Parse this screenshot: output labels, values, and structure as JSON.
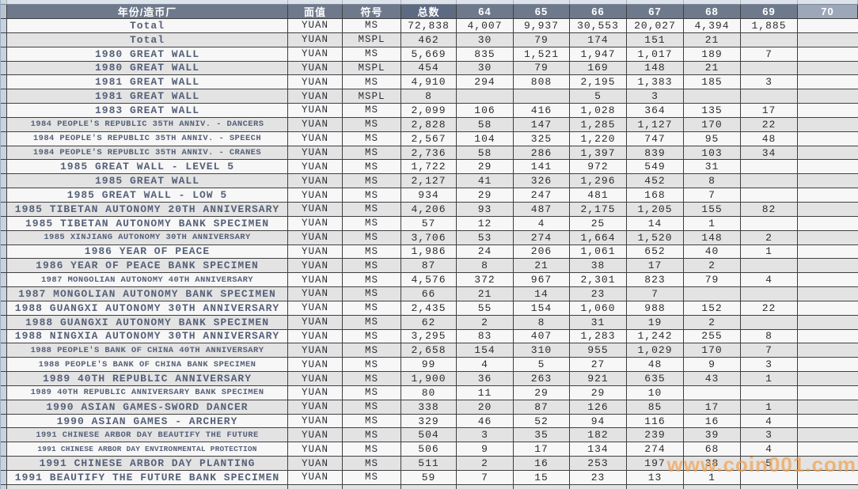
{
  "watermark": {
    "text": "www.coin001.com",
    "color": "#f2a24f"
  },
  "table": {
    "columns": [
      "年份/造币厂",
      "面值",
      "符号",
      "总数",
      "64",
      "65",
      "66",
      "67",
      "68",
      "69",
      "70"
    ],
    "rows": [
      {
        "name": "Total",
        "denomination": "YUAN",
        "designation": "MS",
        "total": "72,838",
        "grades": [
          "4,007",
          "9,937",
          "30,553",
          "20,027",
          "4,394",
          "1,885",
          ""
        ]
      },
      {
        "name": "Total",
        "denomination": "YUAN",
        "designation": "MSPL",
        "total": "462",
        "grades": [
          "30",
          "79",
          "174",
          "151",
          "21",
          "",
          ""
        ]
      },
      {
        "name": "1980 GREAT WALL",
        "denomination": "YUAN",
        "designation": "MS",
        "total": "5,669",
        "grades": [
          "835",
          "1,521",
          "1,947",
          "1,017",
          "189",
          "7",
          ""
        ]
      },
      {
        "name": "1980 GREAT WALL",
        "denomination": "YUAN",
        "designation": "MSPL",
        "total": "454",
        "grades": [
          "30",
          "79",
          "169",
          "148",
          "21",
          "",
          ""
        ]
      },
      {
        "name": "1981 GREAT WALL",
        "denomination": "YUAN",
        "designation": "MS",
        "total": "4,910",
        "grades": [
          "294",
          "808",
          "2,195",
          "1,383",
          "185",
          "3",
          ""
        ]
      },
      {
        "name": "1981 GREAT WALL",
        "denomination": "YUAN",
        "designation": "MSPL",
        "total": "8",
        "grades": [
          "",
          "",
          "5",
          "3",
          "",
          "",
          ""
        ]
      },
      {
        "name": "1983 GREAT WALL",
        "denomination": "YUAN",
        "designation": "MS",
        "total": "2,099",
        "grades": [
          "106",
          "416",
          "1,028",
          "364",
          "135",
          "17",
          ""
        ]
      },
      {
        "name": "1984 PEOPLE'S REPUBLIC 35TH ANNIV. - DANCERS",
        "denomination": "YUAN",
        "designation": "MS",
        "total": "2,828",
        "grades": [
          "58",
          "147",
          "1,285",
          "1,127",
          "170",
          "22",
          ""
        ]
      },
      {
        "name": "1984 PEOPLE'S REPUBLIC 35TH ANNIV. - SPEECH",
        "denomination": "YUAN",
        "designation": "MS",
        "total": "2,567",
        "grades": [
          "104",
          "325",
          "1,220",
          "747",
          "95",
          "48",
          ""
        ]
      },
      {
        "name": "1984 PEOPLE'S REPUBLIC 35TH ANNIV. - CRANES",
        "denomination": "YUAN",
        "designation": "MS",
        "total": "2,736",
        "grades": [
          "58",
          "286",
          "1,397",
          "839",
          "103",
          "34",
          ""
        ]
      },
      {
        "name": "1985 GREAT WALL - LEVEL 5",
        "denomination": "YUAN",
        "designation": "MS",
        "total": "1,722",
        "grades": [
          "29",
          "141",
          "972",
          "549",
          "31",
          "",
          ""
        ]
      },
      {
        "name": "1985 GREAT WALL",
        "denomination": "YUAN",
        "designation": "MS",
        "total": "2,127",
        "grades": [
          "41",
          "326",
          "1,296",
          "452",
          "8",
          "",
          ""
        ]
      },
      {
        "name": "1985 GREAT WALL - LOW 5",
        "denomination": "YUAN",
        "designation": "MS",
        "total": "934",
        "grades": [
          "29",
          "247",
          "481",
          "168",
          "7",
          "",
          ""
        ]
      },
      {
        "name": "1985 TIBETAN AUTONOMY 20TH ANNIVERSARY",
        "denomination": "YUAN",
        "designation": "MS",
        "total": "4,206",
        "grades": [
          "93",
          "487",
          "2,175",
          "1,205",
          "155",
          "82",
          ""
        ]
      },
      {
        "name": "1985 TIBETAN AUTONOMY BANK SPECIMEN",
        "denomination": "YUAN",
        "designation": "MS",
        "total": "57",
        "grades": [
          "12",
          "4",
          "25",
          "14",
          "1",
          "",
          ""
        ]
      },
      {
        "name": "1985 XINJIANG AUTONOMY 30TH ANNIVERSARY",
        "denomination": "YUAN",
        "designation": "MS",
        "total": "3,706",
        "grades": [
          "53",
          "274",
          "1,664",
          "1,520",
          "148",
          "2",
          ""
        ]
      },
      {
        "name": "1986 YEAR OF PEACE",
        "denomination": "YUAN",
        "designation": "MS",
        "total": "1,986",
        "grades": [
          "24",
          "206",
          "1,061",
          "652",
          "40",
          "1",
          ""
        ]
      },
      {
        "name": "1986 YEAR OF PEACE BANK SPECIMEN",
        "denomination": "YUAN",
        "designation": "MS",
        "total": "87",
        "grades": [
          "8",
          "21",
          "38",
          "17",
          "2",
          "",
          ""
        ]
      },
      {
        "name": "1987 MONGOLIAN AUTONOMY 40TH ANNIVERSARY",
        "denomination": "YUAN",
        "designation": "MS",
        "total": "4,576",
        "grades": [
          "372",
          "967",
          "2,301",
          "823",
          "79",
          "4",
          ""
        ]
      },
      {
        "name": "1987 MONGOLIAN AUTONOMY BANK SPECIMEN",
        "denomination": "YUAN",
        "designation": "MS",
        "total": "66",
        "grades": [
          "21",
          "14",
          "23",
          "7",
          "",
          "",
          ""
        ]
      },
      {
        "name": "1988 GUANGXI AUTONOMY 30TH ANNIVERSARY",
        "denomination": "YUAN",
        "designation": "MS",
        "total": "2,435",
        "grades": [
          "55",
          "154",
          "1,060",
          "988",
          "152",
          "22",
          ""
        ]
      },
      {
        "name": "1988 GUANGXI AUTONOMY BANK SPECIMEN",
        "denomination": "YUAN",
        "designation": "MS",
        "total": "62",
        "grades": [
          "2",
          "8",
          "31",
          "19",
          "2",
          "",
          ""
        ]
      },
      {
        "name": "1988 NINGXIA AUTONOMY 30TH ANNIVERSARY",
        "denomination": "YUAN",
        "designation": "MS",
        "total": "3,295",
        "grades": [
          "83",
          "407",
          "1,283",
          "1,242",
          "255",
          "8",
          ""
        ]
      },
      {
        "name": "1988 PEOPLE'S BANK OF CHINA 40TH ANNIVERSARY",
        "denomination": "YUAN",
        "designation": "MS",
        "total": "2,658",
        "grades": [
          "154",
          "310",
          "955",
          "1,029",
          "170",
          "7",
          ""
        ]
      },
      {
        "name": "1988 PEOPLE'S BANK OF CHINA BANK SPECIMEN",
        "denomination": "YUAN",
        "designation": "MS",
        "total": "99",
        "grades": [
          "4",
          "5",
          "27",
          "48",
          "9",
          "3",
          ""
        ]
      },
      {
        "name": "1989 40TH REPUBLIC ANNIVERSARY",
        "denomination": "YUAN",
        "designation": "MS",
        "total": "1,900",
        "grades": [
          "36",
          "263",
          "921",
          "635",
          "43",
          "1",
          ""
        ]
      },
      {
        "name": "1989 40TH REPUBLIC ANNIVERSARY BANK SPECIMEN",
        "denomination": "YUAN",
        "designation": "MS",
        "total": "80",
        "grades": [
          "11",
          "29",
          "29",
          "10",
          "",
          "",
          ""
        ]
      },
      {
        "name": "1990 ASIAN GAMES-SWORD DANCER",
        "denomination": "YUAN",
        "designation": "MS",
        "total": "338",
        "grades": [
          "20",
          "87",
          "126",
          "85",
          "17",
          "1",
          ""
        ]
      },
      {
        "name": "1990 ASIAN GAMES - ARCHERY",
        "denomination": "YUAN",
        "designation": "MS",
        "total": "329",
        "grades": [
          "46",
          "52",
          "94",
          "116",
          "16",
          "4",
          ""
        ]
      },
      {
        "name": "1991 CHINESE ARBOR DAY BEAUTIFY THE FUTURE",
        "denomination": "YUAN",
        "designation": "MS",
        "total": "504",
        "grades": [
          "3",
          "35",
          "182",
          "239",
          "39",
          "3",
          ""
        ]
      },
      {
        "name": "1991 CHINESE ARBOR DAY ENVIRONMENTAL PROTECTION",
        "denomination": "YUAN",
        "designation": "MS",
        "total": "506",
        "grades": [
          "9",
          "17",
          "134",
          "274",
          "68",
          "4",
          ""
        ]
      },
      {
        "name": "1991 CHINESE ARBOR DAY PLANTING",
        "denomination": "YUAN",
        "designation": "MS",
        "total": "511",
        "grades": [
          "2",
          "16",
          "253",
          "197",
          "38",
          "5",
          ""
        ]
      },
      {
        "name": "1991 BEAUTIFY THE FUTURE BANK SPECIMEN",
        "denomination": "YUAN",
        "designation": "MS",
        "total": "59",
        "grades": [
          "7",
          "15",
          "23",
          "13",
          "1",
          "",
          ""
        ]
      }
    ]
  }
}
